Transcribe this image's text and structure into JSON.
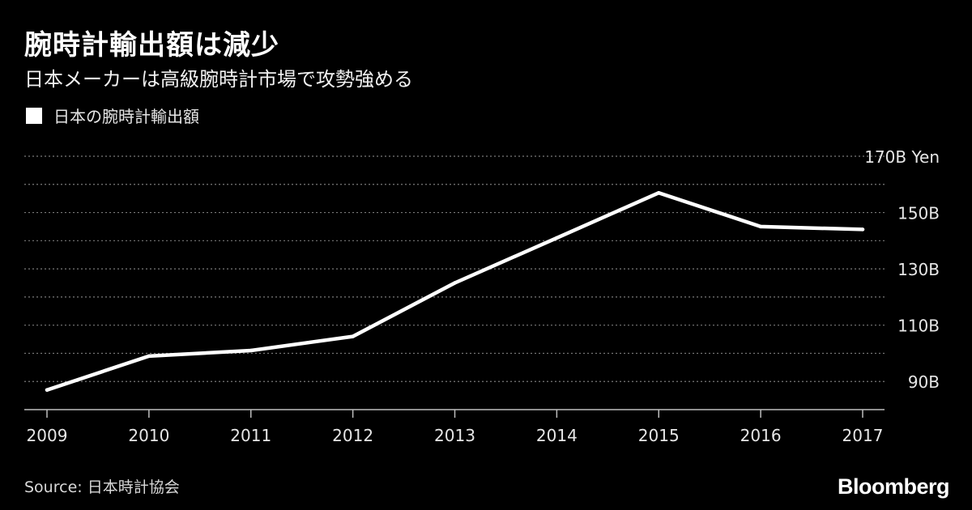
{
  "title": "腕時計輸出額は減少",
  "subtitle": "日本メーカーは高級腕時計市場で攻勢強める",
  "source": "Source: 日本時計協会",
  "brand": "Bloomberg",
  "colors": {
    "background": "#000000",
    "line": "#ffffff",
    "grid": "#808080",
    "text": "#ffffff"
  },
  "chart_data": {
    "type": "line",
    "title": "腕時計輸出額は減少",
    "subtitle": "日本メーカーは高級腕時計市場で攻勢強める",
    "x": [
      2009,
      2010,
      2011,
      2012,
      2013,
      2014,
      2015,
      2016,
      2017
    ],
    "series": [
      {
        "name": "日本の腕時計輸出額",
        "values": [
          87,
          99,
          101,
          106,
          125,
          141,
          157,
          145,
          144
        ]
      }
    ],
    "ylim": [
      80,
      170
    ],
    "y_ticks": [
      90,
      110,
      130,
      150,
      170
    ],
    "y_tick_labels": [
      "90B",
      "110B",
      "130B",
      "150B",
      "170B Yen"
    ],
    "x_tick_labels": [
      "2009",
      "2010",
      "2011",
      "2012",
      "2013",
      "2014",
      "2015",
      "2016",
      "2017"
    ],
    "grid": true,
    "grid_style": "dotted, every 10B",
    "legend_placement": "top-left",
    "y_axis_side": "right"
  }
}
